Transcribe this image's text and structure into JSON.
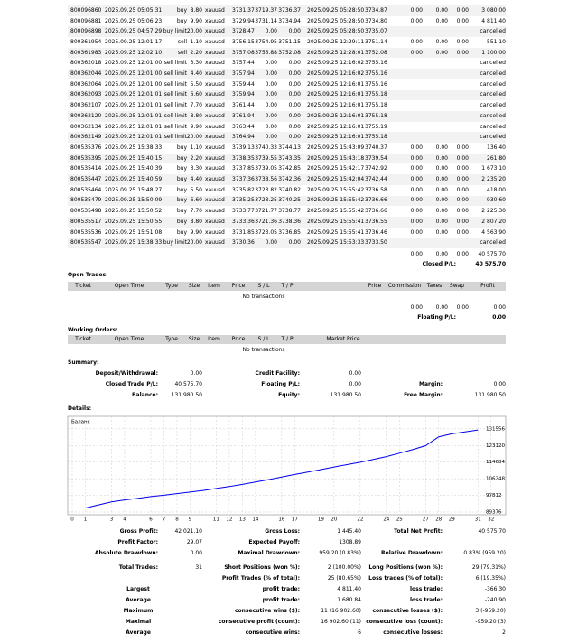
{
  "closed_trades": {
    "rows": [
      [
        "800096860",
        "2025.09.25 05:05:31",
        "buy",
        "8.80",
        "xauusd",
        "3731.37",
        "3719.37",
        "3736.37",
        "2025.09.25 05:28:50",
        "3734.87",
        "0.00",
        "0.00",
        "0.00",
        "3 080.00"
      ],
      [
        "800096881",
        "2025.09.25 05:06:23",
        "buy",
        "9.90",
        "xauusd",
        "3729.94",
        "3731.14",
        "3734.94",
        "2025.09.25 05:28:50",
        "3734.80",
        "0.00",
        "0.00",
        "0.00",
        "4 811.40"
      ],
      [
        "800096898",
        "2025.09.25 04:57:29",
        "buy limit",
        "20.00",
        "xauusd",
        "3728.47",
        "0.00",
        "0.00",
        "2025.09.25 05:28:50",
        "3735.07",
        "cancelled"
      ],
      [
        "800361954",
        "2025.09.25 12:01:17",
        "sell",
        "1.10",
        "xauusd",
        "3756.15",
        "3754.95",
        "3751.15",
        "2025.09.25 12:29:11",
        "3751.14",
        "0.00",
        "0.00",
        "0.00",
        "551.10"
      ],
      [
        "800361983",
        "2025.09.25 12:02:10",
        "sell",
        "2.20",
        "xauusd",
        "3757.08",
        "3755.88",
        "3752.08",
        "2025.09.25 12:28:01",
        "3752.08",
        "0.00",
        "0.00",
        "0.00",
        "1 100.00"
      ],
      [
        "800362018",
        "2025.09.25 12:01:00",
        "sell limit",
        "3.30",
        "xauusd",
        "3757.44",
        "0.00",
        "0.00",
        "2025.09.25 12:16:02",
        "3755.16",
        "cancelled"
      ],
      [
        "800362044",
        "2025.09.25 12:01:00",
        "sell limit",
        "4.40",
        "xauusd",
        "3757.94",
        "0.00",
        "0.00",
        "2025.09.25 12:16:02",
        "3755.16",
        "cancelled"
      ],
      [
        "800362064",
        "2025.09.25 12:01:00",
        "sell limit",
        "5.50",
        "xauusd",
        "3759.44",
        "0.00",
        "0.00",
        "2025.09.25 12:16:01",
        "3755.16",
        "cancelled"
      ],
      [
        "800362093",
        "2025.09.25 12:01:01",
        "sell limit",
        "6.60",
        "xauusd",
        "3759.94",
        "0.00",
        "0.00",
        "2025.09.25 12:16:01",
        "3755.18",
        "cancelled"
      ],
      [
        "800362107",
        "2025.09.25 12:01:01",
        "sell limit",
        "7.70",
        "xauusd",
        "3761.44",
        "0.00",
        "0.00",
        "2025.09.25 12:16:01",
        "3755.18",
        "cancelled"
      ],
      [
        "800362120",
        "2025.09.25 12:01:01",
        "sell limit",
        "8.80",
        "xauusd",
        "3761.94",
        "0.00",
        "0.00",
        "2025.09.25 12:16:01",
        "3755.18",
        "cancelled"
      ],
      [
        "800362134",
        "2025.09.25 12:01:01",
        "sell limit",
        "9.90",
        "xauusd",
        "3763.44",
        "0.00",
        "0.00",
        "2025.09.25 12:16:01",
        "3755.19",
        "cancelled"
      ],
      [
        "800362149",
        "2025.09.25 12:01:01",
        "sell limit",
        "20.00",
        "xauusd",
        "3764.94",
        "0.00",
        "0.00",
        "2025.09.25 12:16:01",
        "3755.18",
        "cancelled"
      ],
      [
        "800535376",
        "2025.09.25 15:38:33",
        "buy",
        "1.10",
        "xauusd",
        "3739.13",
        "3740.33",
        "3744.13",
        "2025.09.25 15:43:09",
        "3740.37",
        "0.00",
        "0.00",
        "0.00",
        "136.40"
      ],
      [
        "800535395",
        "2025.09.25 15:40:15",
        "buy",
        "2.20",
        "xauusd",
        "3738.35",
        "3739.55",
        "3743.35",
        "2025.09.25 15:43:18",
        "3739.54",
        "0.00",
        "0.00",
        "0.00",
        "261.80"
      ],
      [
        "800535414",
        "2025.09.25 15:40:39",
        "buy",
        "3.30",
        "xauusd",
        "3737.85",
        "3739.05",
        "3742.85",
        "2025.09.25 15:42:17",
        "3742.92",
        "0.00",
        "0.00",
        "0.00",
        "1 673.10"
      ],
      [
        "800535447",
        "2025.09.25 15:40:59",
        "buy",
        "4.40",
        "xauusd",
        "3737.36",
        "3738.56",
        "3742.36",
        "2025.09.25 15:42:04",
        "3742.44",
        "0.00",
        "0.00",
        "0.00",
        "2 235.20"
      ],
      [
        "800535464",
        "2025.09.25 15:48:27",
        "buy",
        "5.50",
        "xauusd",
        "3735.82",
        "3723.82",
        "3740.82",
        "2025.09.25 15:55:42",
        "3736.58",
        "0.00",
        "0.00",
        "0.00",
        "418.00"
      ],
      [
        "800535479",
        "2025.09.25 15:50:09",
        "buy",
        "6.60",
        "xauusd",
        "3735.25",
        "3723.25",
        "3740.25",
        "2025.09.25 15:55:42",
        "3736.66",
        "0.00",
        "0.00",
        "0.00",
        "930.60"
      ],
      [
        "800535498",
        "2025.09.25 15:50:52",
        "buy",
        "7.70",
        "xauusd",
        "3733.77",
        "3721.77",
        "3738.77",
        "2025.09.25 15:55:42",
        "3736.66",
        "0.00",
        "0.00",
        "0.00",
        "2 225.30"
      ],
      [
        "800535517",
        "2025.09.25 15:50:55",
        "buy",
        "8.80",
        "xauusd",
        "3733.36",
        "3721.36",
        "3738.36",
        "2025.09.25 15:55:41",
        "3736.55",
        "0.00",
        "0.00",
        "0.00",
        "2 807.20"
      ],
      [
        "800535536",
        "2025.09.25 15:51:08",
        "buy",
        "9.90",
        "xauusd",
        "3731.85",
        "3723.05",
        "3736.85",
        "2025.09.25 15:55:41",
        "3736.46",
        "0.00",
        "0.00",
        "0.00",
        "4 563.90"
      ],
      [
        "800535547",
        "2025.09.25 15:38:33",
        "buy limit",
        "20.00",
        "xauusd",
        "3730.36",
        "0.00",
        "0.00",
        "2025.09.25 15:53:33",
        "3733.50",
        "cancelled"
      ]
    ],
    "totals": [
      "0.00",
      "0.00",
      "0.00",
      "40 575.70"
    ],
    "closed_pl_label": "Closed P/L:",
    "closed_pl": "40 575.70"
  },
  "open_trades": {
    "title": "Open Trades:",
    "headers": [
      "Ticket",
      "Open Time",
      "Type",
      "Size",
      "Item",
      "Price",
      "S / L",
      "T / P",
      "Price",
      "Commission",
      "Taxes",
      "Swap",
      "Profit"
    ],
    "empty": "No transactions",
    "totals": [
      "0.00",
      "0.00",
      "0.00",
      "0.00"
    ],
    "floating_label": "Floating P/L:",
    "floating": "0.00"
  },
  "working_orders": {
    "title": "Working Orders:",
    "headers": [
      "Ticket",
      "Open Time",
      "Type",
      "Size",
      "Item",
      "Price",
      "S / L",
      "T / P",
      "Market Price"
    ],
    "empty": "No transactions"
  },
  "summary": {
    "title": "Summary:",
    "rows": [
      [
        [
          "Deposit/Withdrawal:",
          "0.00"
        ],
        [
          "Credit Facility:",
          "0.00"
        ],
        null
      ],
      [
        [
          "Closed Trade P/L:",
          "40 575.70"
        ],
        [
          "Floating P/L:",
          "0.00"
        ],
        [
          "Margin:",
          "0.00"
        ]
      ],
      [
        [
          "Balance:",
          "131 980.50"
        ],
        [
          "Equity:",
          "131 980.50"
        ],
        [
          "Free Margin:",
          "131 980.50"
        ]
      ]
    ]
  },
  "details": {
    "title": "Details:",
    "chart": {
      "type": "line",
      "label": "Баланс",
      "color": "#0000ee",
      "x": [
        1,
        2,
        3,
        4,
        5,
        6,
        7,
        8,
        9,
        10,
        11,
        12,
        13,
        14,
        15,
        16,
        17,
        18,
        19,
        20,
        21,
        22,
        23,
        24,
        25,
        26,
        27,
        28,
        29,
        30,
        31
      ],
      "values": [
        91405,
        93000,
        94500,
        95500,
        96300,
        97200,
        97900,
        98700,
        99500,
        100300,
        101300,
        102300,
        103400,
        104600,
        105800,
        107100,
        108400,
        109600,
        110900,
        112200,
        113400,
        114600,
        116000,
        117500,
        119200,
        121000,
        123000,
        127500,
        129000,
        130000,
        131000
      ],
      "xlim": [
        0,
        32.5
      ],
      "ylim": [
        88000,
        137900
      ],
      "xticks": [
        0,
        1,
        3,
        4,
        6,
        7,
        8,
        9,
        11,
        12,
        13,
        14,
        16,
        17,
        19,
        20,
        22,
        24,
        25,
        27,
        28,
        29,
        31,
        32
      ],
      "yticks": [
        131556,
        123120,
        114684,
        106248,
        97812,
        89376
      ],
      "grid": true
    },
    "stats": [
      [
        [
          "Gross Profit:",
          "42 021.10"
        ],
        [
          "Gross Loss:",
          "1 445.40"
        ],
        [
          "Total Net Profit:",
          "40 575.70"
        ]
      ],
      [
        [
          "Profit Factor:",
          "29.07"
        ],
        [
          "Expected Payoff:",
          "1308.89"
        ],
        null
      ],
      [
        [
          "Absolute Drawdown:",
          "0.00"
        ],
        [
          "Maximal Drawdown:",
          "959.20 (0.83%)"
        ],
        [
          "Relative Drawdown:",
          "0.83% (959.20)"
        ]
      ],
      [
        [
          "Total Trades:",
          "31"
        ],
        [
          "Short Positions (won %):",
          "2 (100.00%)"
        ],
        [
          "Long Positions (won %):",
          "29 (79.31%)"
        ]
      ],
      [
        null,
        [
          "Profit Trades (% of total):",
          "25 (80.65%)"
        ],
        [
          "Loss trades (% of total):",
          "6 (19.35%)"
        ]
      ],
      [
        [
          "Largest"
        ],
        [
          "profit trade:",
          "4 811.40"
        ],
        [
          "loss trade:",
          "-366.30"
        ]
      ],
      [
        [
          "Average"
        ],
        [
          "profit trade:",
          "1 680.84"
        ],
        [
          "loss trade:",
          "-240.90"
        ]
      ],
      [
        [
          "Maximum"
        ],
        [
          "consecutive wins ($):",
          "11 (16 902.60)"
        ],
        [
          "consecutive losses ($):",
          "3 (-959.20)"
        ]
      ],
      [
        [
          "Maximal"
        ],
        [
          "consecutive profit (count):",
          "16 902.60 (11)"
        ],
        [
          "consecutive loss (count):",
          "-959.20 (3)"
        ]
      ],
      [
        [
          "Average"
        ],
        [
          "consecutive wins:",
          "6"
        ],
        [
          "consecutive losses:",
          "2"
        ]
      ]
    ]
  }
}
